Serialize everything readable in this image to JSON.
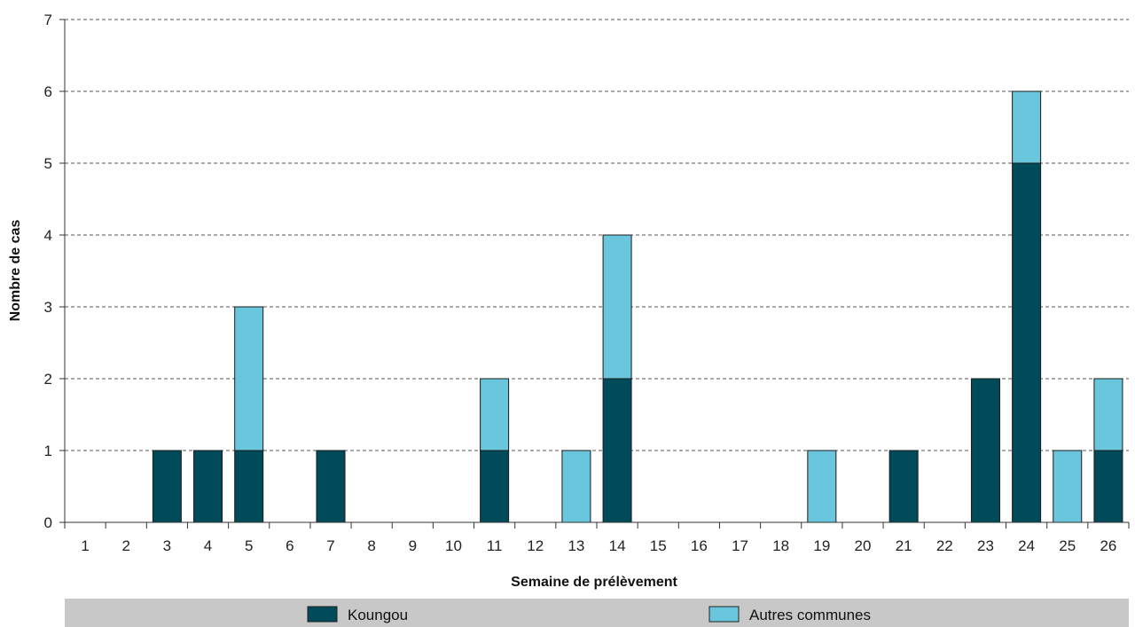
{
  "chart_data": {
    "type": "bar",
    "stacked": true,
    "xlabel": "Semaine de prélèvement",
    "ylabel": "Nombre de cas",
    "ylim": [
      0,
      7
    ],
    "yticks": [
      0,
      1,
      2,
      3,
      4,
      5,
      6,
      7
    ],
    "grid": true,
    "legend_position": "bottom",
    "categories": [
      "1",
      "2",
      "3",
      "4",
      "5",
      "6",
      "7",
      "8",
      "9",
      "10",
      "11",
      "12",
      "13",
      "14",
      "15",
      "16",
      "17",
      "18",
      "19",
      "20",
      "21",
      "22",
      "23",
      "24",
      "25",
      "26"
    ],
    "series": [
      {
        "name": "Koungou",
        "color": "#004b5a",
        "values": [
          0,
          0,
          1,
          1,
          1,
          0,
          1,
          0,
          0,
          0,
          1,
          0,
          0,
          2,
          0,
          0,
          0,
          0,
          0,
          0,
          1,
          0,
          2,
          5,
          0,
          1
        ]
      },
      {
        "name": "Autres communes",
        "color": "#6ac6dc",
        "values": [
          0,
          0,
          0,
          0,
          2,
          0,
          0,
          0,
          0,
          0,
          1,
          0,
          1,
          2,
          0,
          0,
          0,
          0,
          1,
          0,
          0,
          0,
          0,
          1,
          1,
          1
        ]
      }
    ]
  }
}
